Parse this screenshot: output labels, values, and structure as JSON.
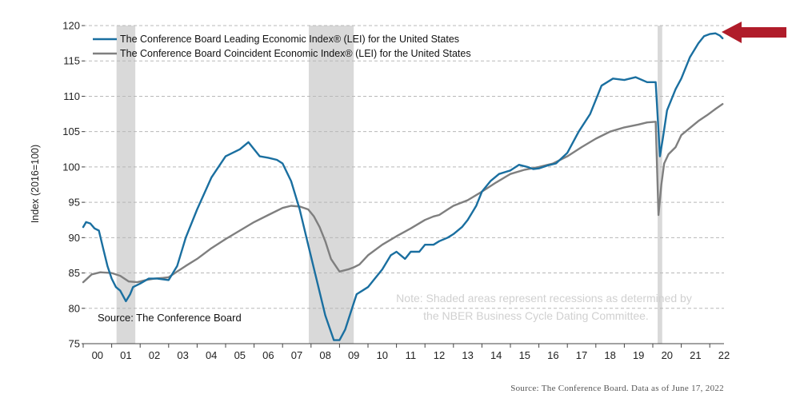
{
  "chart_data": {
    "type": "line",
    "ylabel": "Index (2016=100)",
    "ylim": [
      75,
      120
    ],
    "yticks": [
      75,
      80,
      85,
      90,
      95,
      100,
      105,
      110,
      115,
      120
    ],
    "xlim": [
      0,
      22.5
    ],
    "xticks": [
      {
        "pos": 0.5,
        "label": "00"
      },
      {
        "pos": 1.5,
        "label": "01"
      },
      {
        "pos": 2.5,
        "label": "02"
      },
      {
        "pos": 3.5,
        "label": "03"
      },
      {
        "pos": 4.5,
        "label": "04"
      },
      {
        "pos": 5.5,
        "label": "05"
      },
      {
        "pos": 6.5,
        "label": "06"
      },
      {
        "pos": 7.5,
        "label": "07"
      },
      {
        "pos": 8.5,
        "label": "08"
      },
      {
        "pos": 9.5,
        "label": "09"
      },
      {
        "pos": 10.5,
        "label": "10"
      },
      {
        "pos": 11.5,
        "label": "11"
      },
      {
        "pos": 12.5,
        "label": "12"
      },
      {
        "pos": 13.5,
        "label": "13"
      },
      {
        "pos": 14.5,
        "label": "14"
      },
      {
        "pos": 15.5,
        "label": "15"
      },
      {
        "pos": 16.5,
        "label": "16"
      },
      {
        "pos": 17.5,
        "label": "17"
      },
      {
        "pos": 18.5,
        "label": "18"
      },
      {
        "pos": 19.5,
        "label": "19"
      },
      {
        "pos": 20.5,
        "label": "20"
      },
      {
        "pos": 21.5,
        "label": "21"
      },
      {
        "pos": 22.5,
        "label": "22"
      }
    ],
    "grid": "horizontal-dashed",
    "legend_position": "top-left",
    "recessions": [
      [
        1.17,
        1.83
      ],
      [
        7.92,
        9.5
      ],
      [
        20.17,
        20.33
      ]
    ],
    "series": [
      {
        "name": "The Conference Board Leading Economic Index® (LEI) for the United States",
        "color": "#1a6fa0",
        "x": [
          0,
          0.1,
          0.25,
          0.4,
          0.55,
          0.7,
          0.85,
          1.0,
          1.15,
          1.3,
          1.5,
          1.65,
          1.75,
          2.0,
          2.3,
          2.6,
          3.0,
          3.3,
          3.6,
          4.0,
          4.5,
          5.0,
          5.5,
          5.8,
          6.0,
          6.2,
          6.5,
          6.8,
          7.0,
          7.3,
          7.6,
          7.9,
          8.2,
          8.5,
          8.8,
          9.0,
          9.2,
          9.4,
          9.6,
          9.8,
          10.0,
          10.2,
          10.5,
          10.8,
          11.0,
          11.3,
          11.5,
          11.8,
          12.0,
          12.3,
          12.5,
          12.8,
          13.0,
          13.3,
          13.5,
          13.8,
          14.0,
          14.3,
          14.6,
          15.0,
          15.3,
          15.6,
          15.8,
          16.0,
          16.3,
          16.6,
          17.0,
          17.4,
          17.8,
          18.2,
          18.6,
          19.0,
          19.4,
          19.8,
          20.1,
          20.25,
          20.35,
          20.5,
          20.8,
          21.0,
          21.3,
          21.6,
          21.8,
          22.0,
          22.2,
          22.35,
          22.45
        ],
        "values": [
          91.5,
          92.2,
          92.0,
          91.3,
          91.0,
          88.5,
          86.0,
          84.2,
          83.0,
          82.5,
          81.0,
          82.0,
          83.0,
          83.5,
          84.2,
          84.2,
          84.0,
          86.0,
          90.0,
          94.0,
          98.5,
          101.5,
          102.5,
          103.5,
          102.5,
          101.5,
          101.3,
          101.0,
          100.5,
          98.0,
          94.0,
          89.0,
          84.0,
          79.0,
          75.5,
          75.5,
          77.0,
          79.5,
          82.0,
          82.5,
          83.0,
          84.0,
          85.5,
          87.5,
          88.0,
          87.0,
          88.0,
          88.0,
          89.0,
          89.0,
          89.5,
          90.0,
          90.5,
          91.5,
          92.5,
          94.5,
          96.5,
          98.0,
          99.0,
          99.5,
          100.3,
          100.0,
          99.7,
          99.8,
          100.2,
          100.5,
          102.0,
          105.0,
          107.5,
          111.5,
          112.5,
          112.3,
          112.7,
          112.0,
          112.0,
          101.5,
          104.0,
          108.0,
          111.0,
          112.5,
          115.5,
          117.5,
          118.5,
          118.8,
          118.9,
          118.6,
          118.2
        ]
      },
      {
        "name": "The Conference Board Coincident Economic Index® (LEI) for the United States",
        "color": "#7f7f7f",
        "x": [
          0,
          0.3,
          0.6,
          1.0,
          1.3,
          1.6,
          1.9,
          2.2,
          2.5,
          2.8,
          3.0,
          3.3,
          3.6,
          4.0,
          4.5,
          5.0,
          5.5,
          6.0,
          6.5,
          7.0,
          7.3,
          7.6,
          7.9,
          8.1,
          8.3,
          8.5,
          8.7,
          9.0,
          9.3,
          9.5,
          9.7,
          10.0,
          10.5,
          11.0,
          11.5,
          12.0,
          12.3,
          12.5,
          12.8,
          13.0,
          13.5,
          14.0,
          14.5,
          15.0,
          15.5,
          16.0,
          16.5,
          17.0,
          17.5,
          18.0,
          18.5,
          19.0,
          19.5,
          19.8,
          20.1,
          20.2,
          20.3,
          20.4,
          20.55,
          20.8,
          21.0,
          21.3,
          21.6,
          21.9,
          22.2,
          22.45
        ],
        "values": [
          83.7,
          84.8,
          85.1,
          85.0,
          84.6,
          83.8,
          83.7,
          84.0,
          84.2,
          84.3,
          84.4,
          85.2,
          86.0,
          87.0,
          88.5,
          89.8,
          91.0,
          92.2,
          93.2,
          94.2,
          94.5,
          94.4,
          94.0,
          93.0,
          91.5,
          89.5,
          87.0,
          85.2,
          85.5,
          85.8,
          86.2,
          87.5,
          89.0,
          90.2,
          91.3,
          92.5,
          93.0,
          93.2,
          94.0,
          94.5,
          95.3,
          96.5,
          97.8,
          99.0,
          99.6,
          100.0,
          100.5,
          101.5,
          102.8,
          104.0,
          105.0,
          105.6,
          106.0,
          106.3,
          106.4,
          93.2,
          97.5,
          100.5,
          101.8,
          102.8,
          104.5,
          105.5,
          106.5,
          107.3,
          108.2,
          108.9
        ]
      }
    ],
    "source_inner": "Source: The Conference Board",
    "note": [
      "Note: Shaded areas represent recessions as determined by",
      "the NBER Business Cycle Dating Committee."
    ],
    "source_bottom": "Source: The Conference Board. Data as of June 17, 2022",
    "arrow_color": "#b01c2a",
    "recession_color": "#d9d9d9"
  }
}
